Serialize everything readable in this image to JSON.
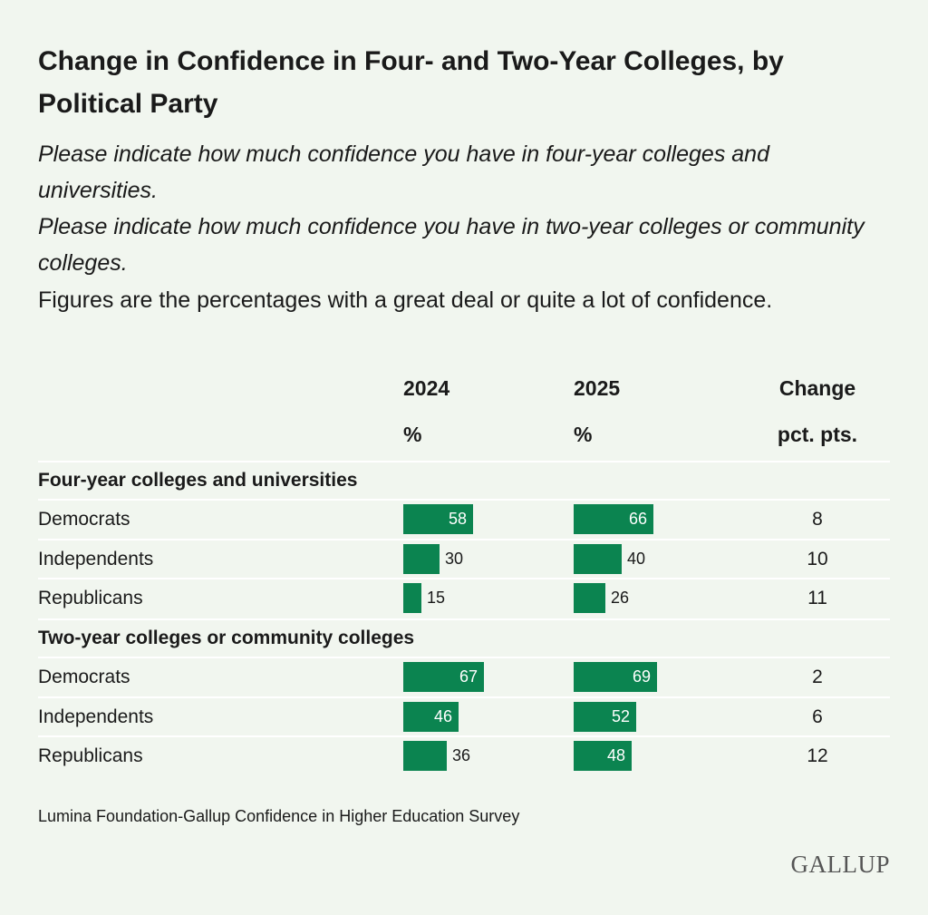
{
  "title": "Change in Confidence in Four- and Two-Year Colleges, by Political Party",
  "subtitle_lines": [
    "Please indicate how much confidence you have in four-year colleges and universities.",
    "Please indicate how much confidence you have in two-year colleges or community colleges.",
    "Figures are the percentages with a great deal or quite a lot of confidence."
  ],
  "columns": {
    "y2024": "2024",
    "y2024_unit": "%",
    "y2025": "2025",
    "y2025_unit": "%",
    "change": "Change",
    "change_unit": "pct. pts."
  },
  "source": "Lumina Foundation-Gallup Confidence in Higher Education Survey",
  "logo": "GALLUP",
  "colors": {
    "bar": "#0b8450",
    "background": "#f1f6ef"
  },
  "chart_data": {
    "type": "bar",
    "groups": [
      {
        "name": "Four-year colleges and universities",
        "rows": [
          {
            "label": "Democrats",
            "y2024": 58,
            "y2025": 66,
            "change": 8
          },
          {
            "label": "Independents",
            "y2024": 30,
            "y2025": 40,
            "change": 10
          },
          {
            "label": "Republicans",
            "y2024": 15,
            "y2025": 26,
            "change": 11
          }
        ]
      },
      {
        "name": "Two-year colleges or community colleges",
        "rows": [
          {
            "label": "Democrats",
            "y2024": 67,
            "y2025": 69,
            "change": 2
          },
          {
            "label": "Independents",
            "y2024": 46,
            "y2025": 52,
            "change": 6
          },
          {
            "label": "Republicans",
            "y2024": 36,
            "y2025": 48,
            "change": 12
          }
        ]
      }
    ]
  }
}
